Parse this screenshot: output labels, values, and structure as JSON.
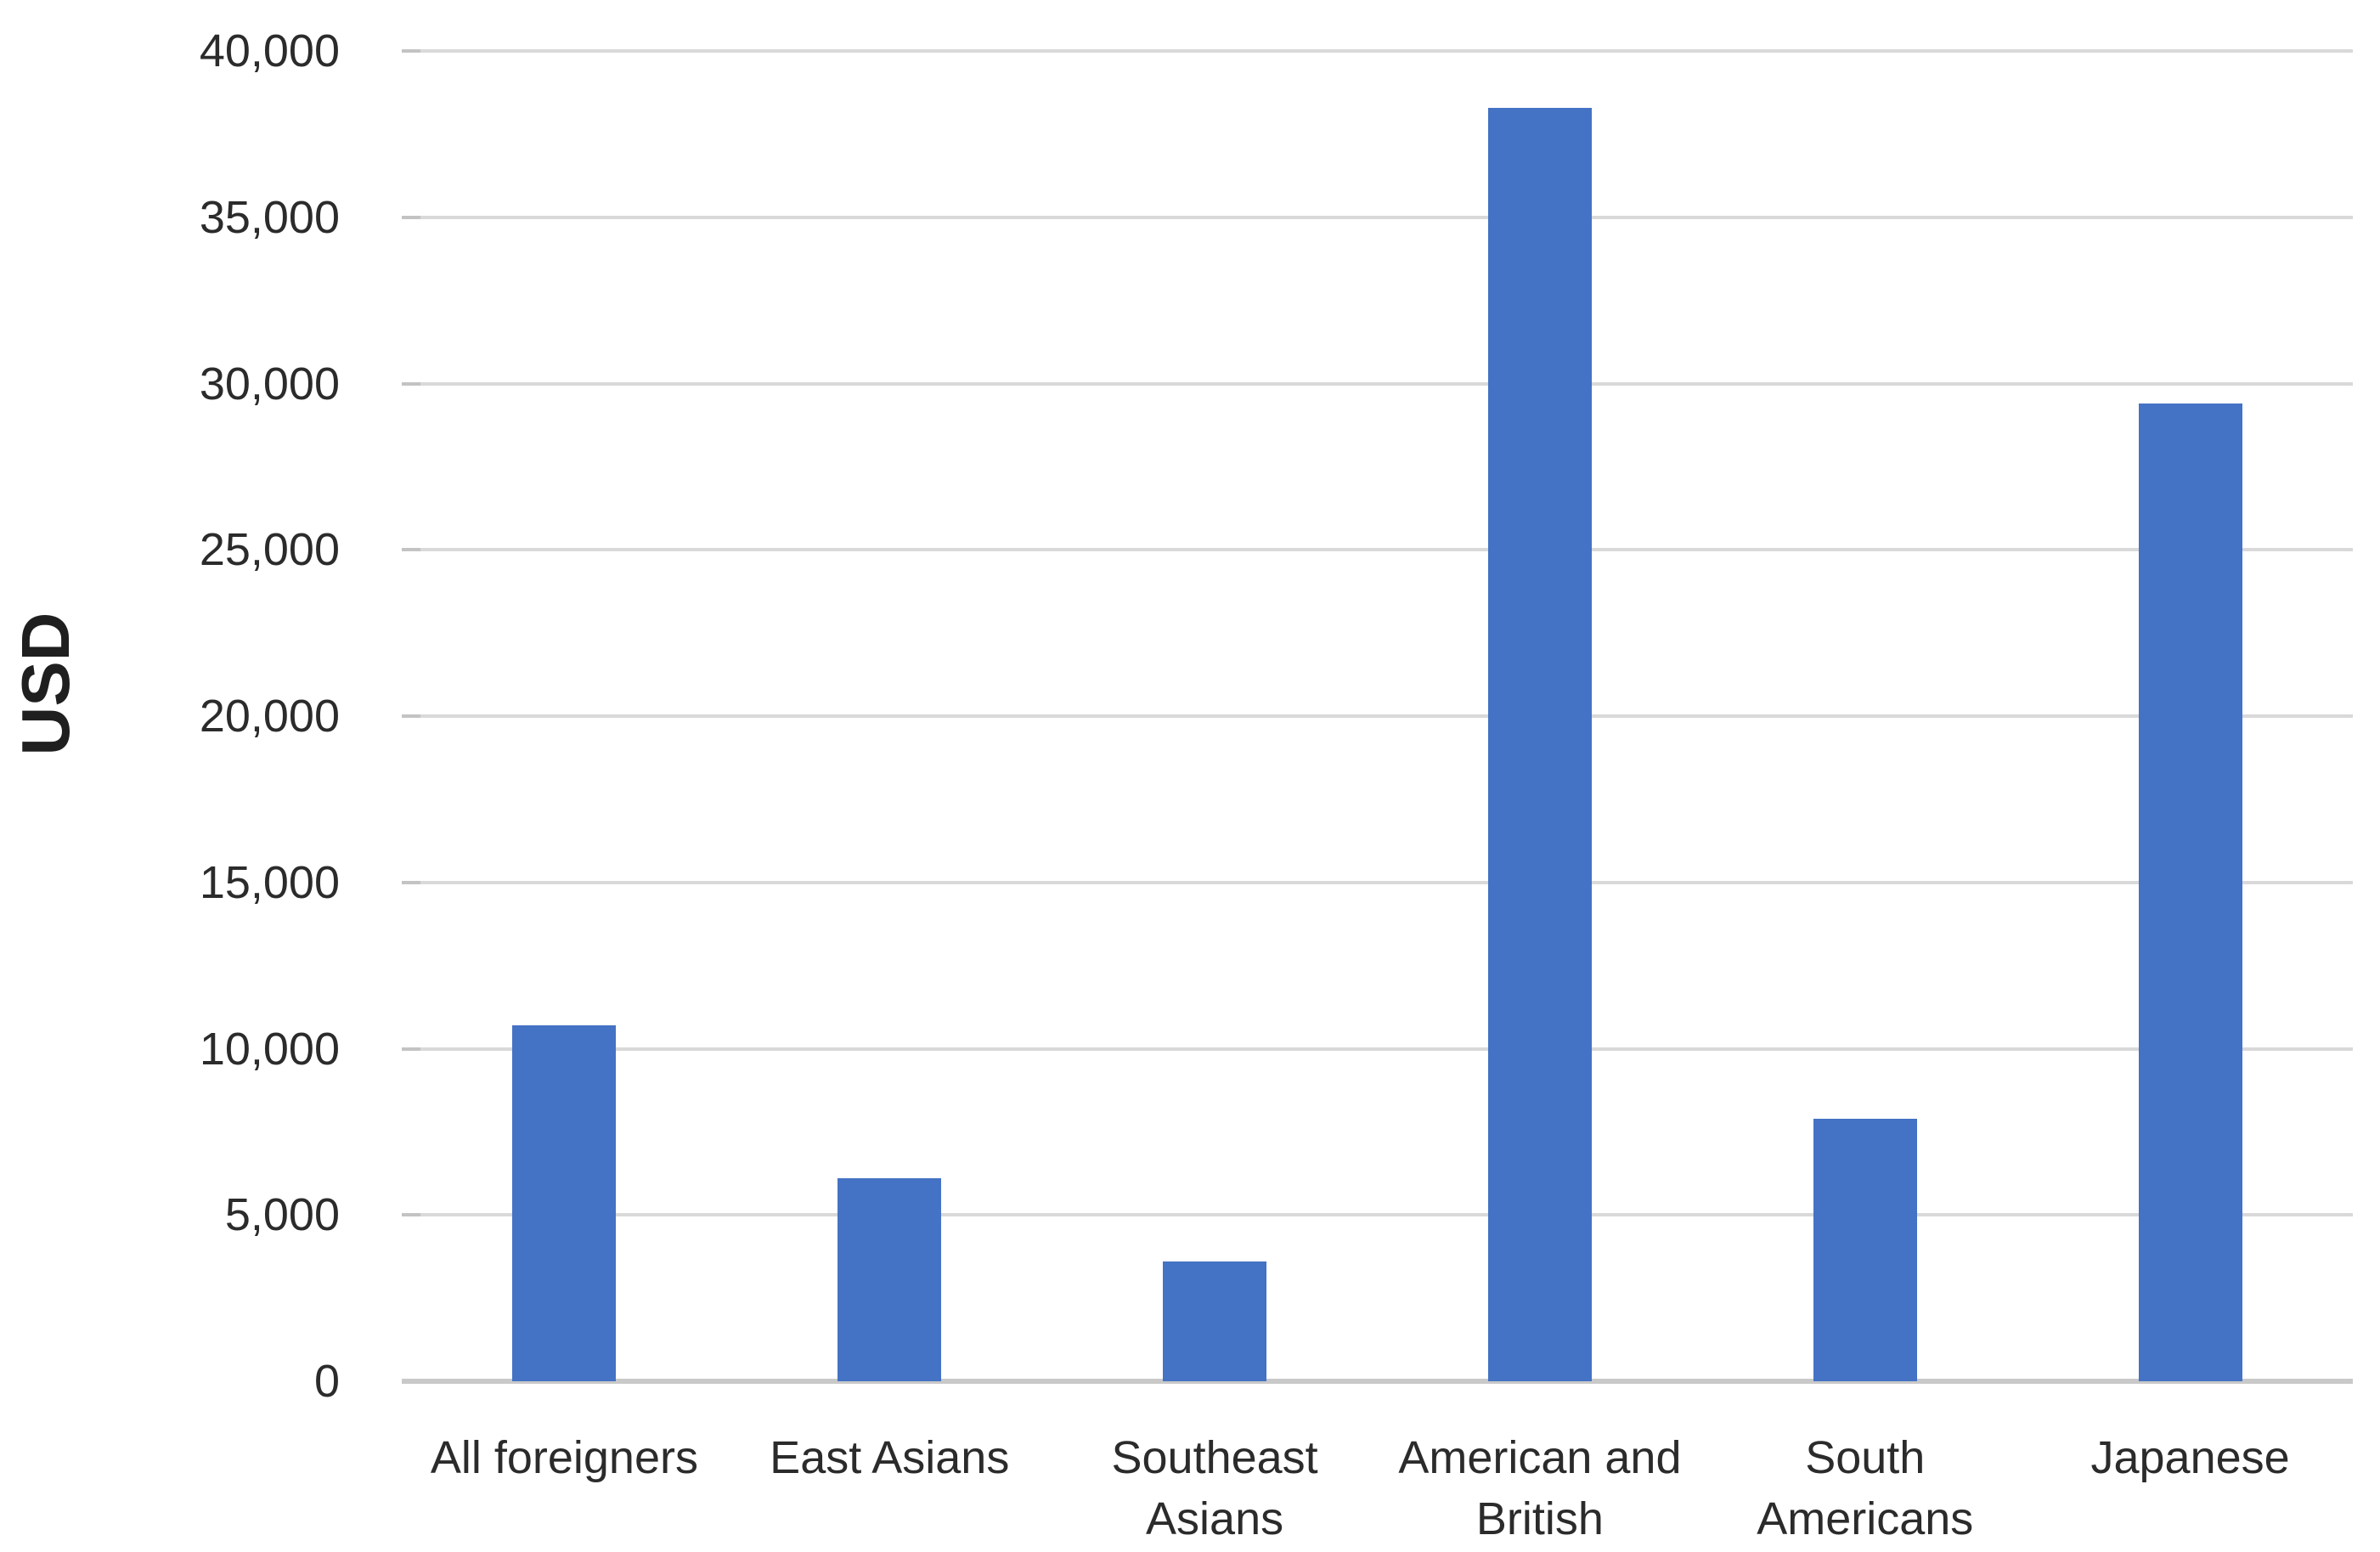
{
  "chart_data": {
    "type": "bar",
    "title": "",
    "xlabel": "",
    "ylabel": "USD",
    "categories": [
      "All foreigners",
      "East Asians",
      "Southeast Asians",
      "American and British",
      "South Americans",
      "Japanese"
    ],
    "values": [
      10700,
      6100,
      3600,
      38300,
      7900,
      29400
    ],
    "ylim": [
      0,
      40000
    ],
    "ytick_values": [
      0,
      5000,
      10000,
      15000,
      20000,
      25000,
      30000,
      35000,
      40000
    ],
    "ytick_labels": [
      "0",
      "5,000",
      "10,000",
      "15,000",
      "20,000",
      "25,000",
      "30,000",
      "35,000",
      "40,000"
    ],
    "grid": true,
    "legend": false,
    "bar_color": "#4472C4",
    "gridline_color": "#D9D9D9",
    "axis_line_color": "#C9C9C9",
    "text_color": "#2B2B2B"
  }
}
